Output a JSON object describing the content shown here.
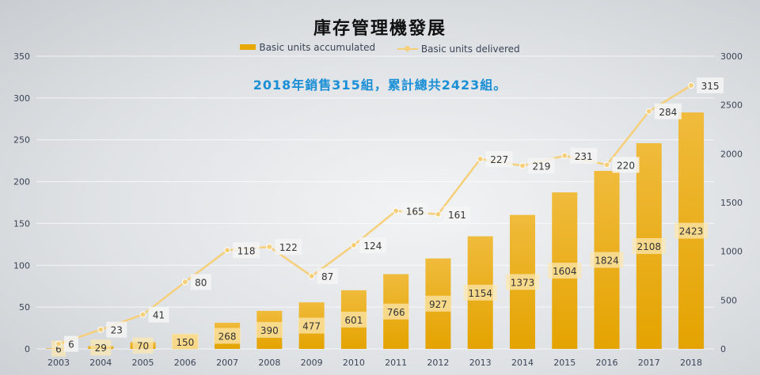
{
  "chart_data": {
    "type": "bar+line",
    "title": "庫存管理機發展",
    "annotation": "2018年銷售315組，累計總共2423組。",
    "categories": [
      "2003",
      "2004",
      "2005",
      "2006",
      "2007",
      "2008",
      "2009",
      "2010",
      "2011",
      "2012",
      "2013",
      "2014",
      "2015",
      "2016",
      "2017",
      "2018"
    ],
    "series": [
      {
        "name": "Basic units accumulated",
        "type": "bar",
        "axis": "right",
        "color": "#e8a800",
        "values": [
          6,
          29,
          70,
          150,
          268,
          390,
          477,
          601,
          766,
          927,
          1154,
          1373,
          1604,
          1824,
          2108,
          2423
        ]
      },
      {
        "name": "Basic units delivered",
        "type": "line",
        "axis": "left",
        "color": "#f6cf7a",
        "values": [
          6,
          23,
          41,
          80,
          118,
          122,
          87,
          124,
          165,
          161,
          227,
          219,
          231,
          220,
          284,
          315
        ]
      }
    ],
    "left_axis": {
      "range": [
        0,
        350
      ],
      "ticks": [
        "0",
        "50",
        "100",
        "150",
        "200",
        "250",
        "300",
        "350"
      ]
    },
    "right_axis": {
      "range": [
        0,
        3000
      ],
      "ticks": [
        "0",
        "500",
        "1000",
        "1500",
        "2000",
        "2500",
        "3000"
      ]
    },
    "legend": "top",
    "grid": true
  }
}
